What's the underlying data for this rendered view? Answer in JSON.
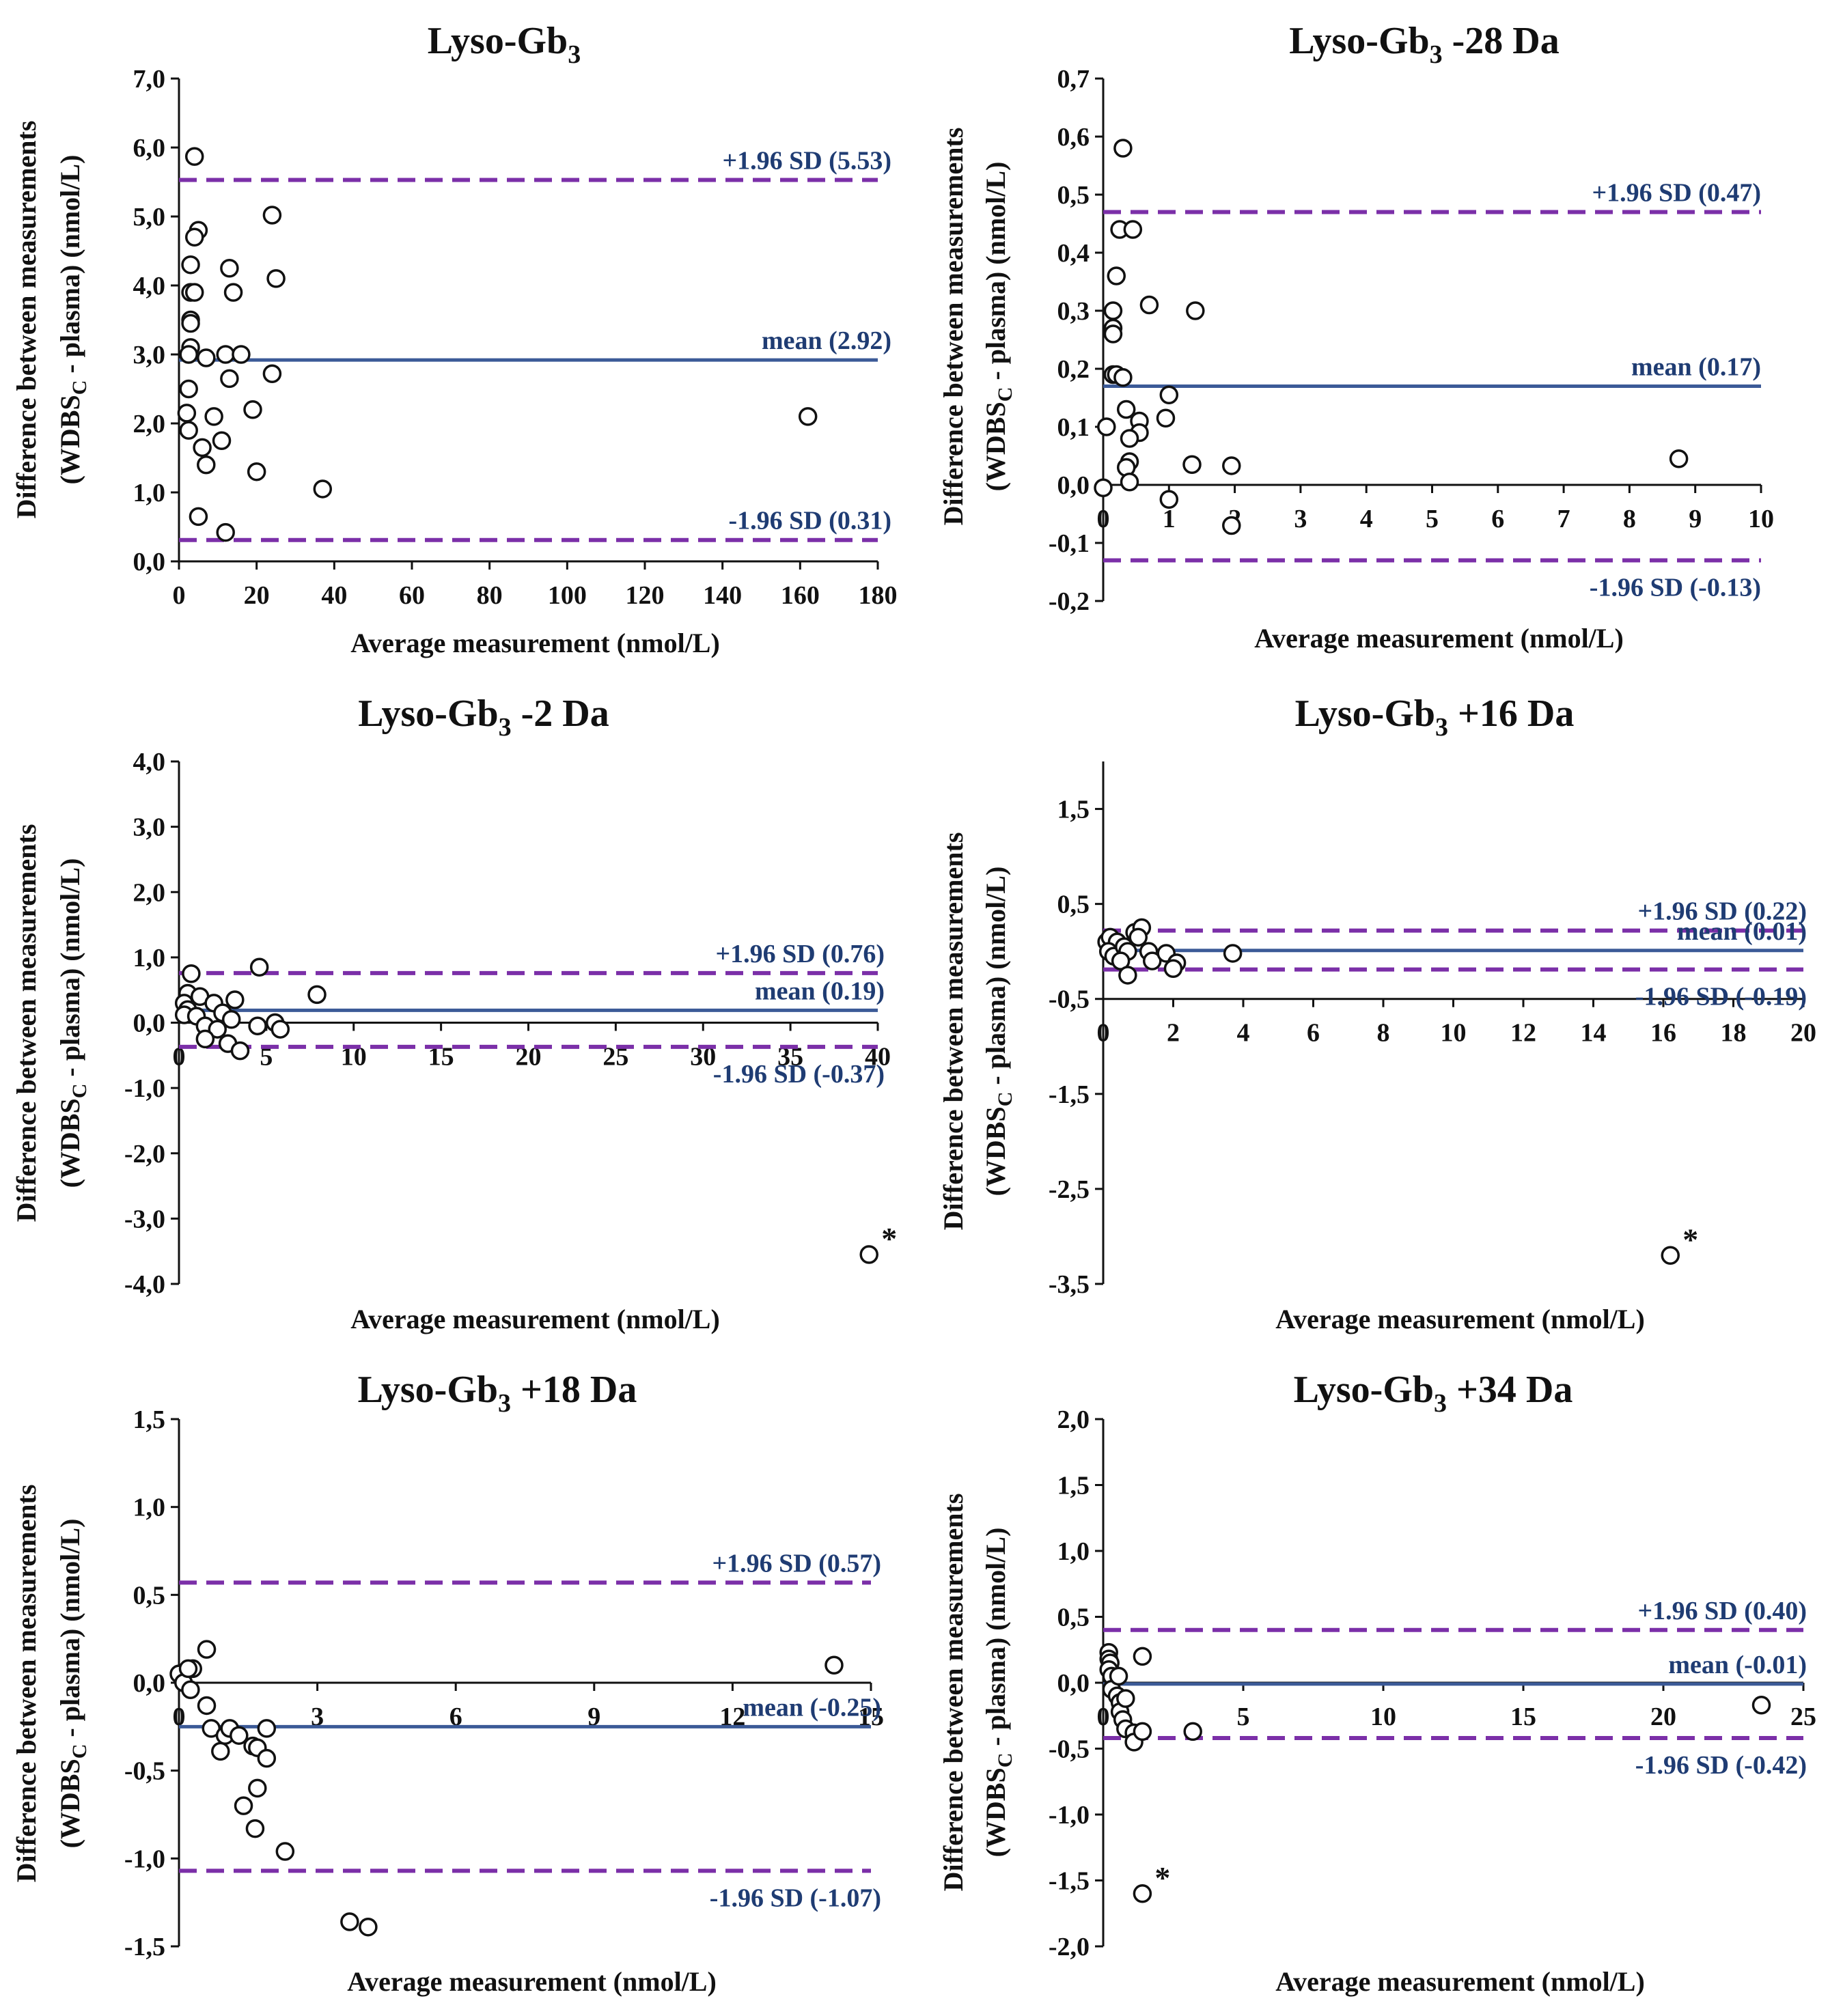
{
  "colors": {
    "mean_line": "#3b5a97",
    "sd_line": "#7b2fa8",
    "label_text": "#1f3c73",
    "axis": "#111111",
    "point_stroke": "#111111"
  },
  "chart_data": [
    {
      "type": "scatter",
      "title_main": "Lyso-Gb",
      "title_sub": "3",
      "title_rest": "",
      "xlabel": "Average measurement (nmol/L)",
      "ylabel_line1": "Difference between measurements",
      "ylabel_line2_a": "(WDBS",
      "ylabel_line2_sub": "C",
      "ylabel_line2_b": " - plasma) (nmol/L)",
      "xlim": [
        0,
        180
      ],
      "ylim": [
        0,
        7
      ],
      "xticks": [
        0,
        20,
        40,
        60,
        80,
        100,
        120,
        140,
        160,
        180
      ],
      "yticks": [
        0,
        1,
        2,
        3,
        4,
        5,
        6,
        7
      ],
      "xtick_labels": [
        "0",
        "20",
        "40",
        "60",
        "80",
        "100",
        "120",
        "140",
        "160",
        "180"
      ],
      "ytick_labels": [
        "0,0",
        "1,0",
        "2,0",
        "3,0",
        "4,0",
        "5,0",
        "6,0",
        "7,0"
      ],
      "xaxis_at": 0,
      "mean": 2.92,
      "upper": 5.53,
      "lower": 0.31,
      "mean_label": "mean (2.92)",
      "upper_label": "+1.96 SD (5.53)",
      "lower_label": "-1.96 SD (0.31)",
      "points": [
        {
          "x": 4,
          "y": 5.87
        },
        {
          "x": 5,
          "y": 4.8
        },
        {
          "x": 4,
          "y": 4.7
        },
        {
          "x": 3,
          "y": 4.3
        },
        {
          "x": 3,
          "y": 3.9
        },
        {
          "x": 4,
          "y": 3.9
        },
        {
          "x": 3,
          "y": 3.5
        },
        {
          "x": 3,
          "y": 3.45
        },
        {
          "x": 3,
          "y": 3.1
        },
        {
          "x": 2.5,
          "y": 3.0
        },
        {
          "x": 7,
          "y": 2.95
        },
        {
          "x": 2.5,
          "y": 2.5
        },
        {
          "x": 2,
          "y": 2.15
        },
        {
          "x": 2.5,
          "y": 1.9
        },
        {
          "x": 6,
          "y": 1.65
        },
        {
          "x": 7,
          "y": 1.4
        },
        {
          "x": 9,
          "y": 2.1
        },
        {
          "x": 11,
          "y": 1.75
        },
        {
          "x": 12,
          "y": 3.0
        },
        {
          "x": 13,
          "y": 4.25
        },
        {
          "x": 14,
          "y": 3.9
        },
        {
          "x": 13,
          "y": 2.65
        },
        {
          "x": 16,
          "y": 3.0
        },
        {
          "x": 19,
          "y": 2.2
        },
        {
          "x": 20,
          "y": 1.3
        },
        {
          "x": 24,
          "y": 5.02
        },
        {
          "x": 25,
          "y": 4.1
        },
        {
          "x": 24,
          "y": 2.72
        },
        {
          "x": 5,
          "y": 0.65
        },
        {
          "x": 12,
          "y": 0.42
        },
        {
          "x": 37,
          "y": 1.05
        },
        {
          "x": 162,
          "y": 2.1
        }
      ],
      "asterisk_points": []
    },
    {
      "type": "scatter",
      "title_main": "Lyso-Gb",
      "title_sub": "3",
      "title_rest": "-28 Da",
      "xlabel": "Average measurement (nmol/L)",
      "ylabel_line1": "Difference between measurements",
      "ylabel_line2_a": "(WDBS",
      "ylabel_line2_sub": "C",
      "ylabel_line2_b": " - plasma) (nmol/L)",
      "xlim": [
        0,
        10
      ],
      "ylim": [
        -0.2,
        0.7
      ],
      "xticks": [
        0,
        1,
        2,
        3,
        4,
        5,
        6,
        7,
        8,
        9,
        10
      ],
      "yticks": [
        -0.2,
        -0.1,
        0,
        0.1,
        0.2,
        0.3,
        0.4,
        0.5,
        0.6,
        0.7
      ],
      "xtick_labels": [
        "0",
        "1",
        "2",
        "3",
        "4",
        "5",
        "6",
        "7",
        "8",
        "9",
        "10"
      ],
      "ytick_labels": [
        "-0,2",
        "-0,1",
        "0,0",
        "0,1",
        "0,2",
        "0,3",
        "0,4",
        "0,5",
        "0,6",
        "0,7"
      ],
      "xaxis_at": 0,
      "mean": 0.17,
      "upper": 0.47,
      "lower": -0.13,
      "mean_label": "mean (0.17)",
      "upper_label": "+1.96 SD (0.47)",
      "lower_label": "-1.96 SD (-0.13)",
      "points": [
        {
          "x": 0.3,
          "y": 0.58
        },
        {
          "x": 0.25,
          "y": 0.44
        },
        {
          "x": 0.45,
          "y": 0.44
        },
        {
          "x": 0.2,
          "y": 0.36
        },
        {
          "x": 0.15,
          "y": 0.3
        },
        {
          "x": 0.15,
          "y": 0.27
        },
        {
          "x": 0.15,
          "y": 0.26
        },
        {
          "x": 0.15,
          "y": 0.19
        },
        {
          "x": 0.2,
          "y": 0.19
        },
        {
          "x": 0.3,
          "y": 0.185
        },
        {
          "x": 0.05,
          "y": 0.1
        },
        {
          "x": 0.35,
          "y": 0.13
        },
        {
          "x": 0.55,
          "y": 0.11
        },
        {
          "x": 0.55,
          "y": 0.09
        },
        {
          "x": 0.4,
          "y": 0.08
        },
        {
          "x": 0.4,
          "y": 0.04
        },
        {
          "x": 0.35,
          "y": 0.03
        },
        {
          "x": 0.4,
          "y": 0.005
        },
        {
          "x": 0.0,
          "y": -0.005
        },
        {
          "x": 0.7,
          "y": 0.31
        },
        {
          "x": 1.4,
          "y": 0.3
        },
        {
          "x": 1.0,
          "y": 0.155
        },
        {
          "x": 0.95,
          "y": 0.115
        },
        {
          "x": 1.0,
          "y": -0.025
        },
        {
          "x": 1.35,
          "y": 0.035
        },
        {
          "x": 1.95,
          "y": 0.033
        },
        {
          "x": 1.95,
          "y": -0.07
        },
        {
          "x": 8.75,
          "y": 0.045
        }
      ],
      "asterisk_points": []
    },
    {
      "type": "scatter",
      "title_main": "Lyso-Gb",
      "title_sub": "3",
      "title_rest": "-2 Da",
      "xlabel": "Average measurement (nmol/L)",
      "ylabel_line1": "Difference between measurements",
      "ylabel_line2_a": "(WDBS",
      "ylabel_line2_sub": "C",
      "ylabel_line2_b": " - plasma) (nmol/L)",
      "xlim": [
        0,
        40
      ],
      "ylim": [
        -4,
        4
      ],
      "xticks": [
        0,
        5,
        10,
        15,
        20,
        25,
        30,
        35,
        40
      ],
      "yticks": [
        -4,
        -3,
        -2,
        -1,
        0,
        1,
        2,
        3,
        4
      ],
      "xtick_labels": [
        "0",
        "5",
        "10",
        "15",
        "20",
        "25",
        "30",
        "35",
        "40"
      ],
      "ytick_labels": [
        "-4,0",
        "-3,0",
        "-2,0",
        "-1,0",
        "0,0",
        "1,0",
        "2,0",
        "3,0",
        "4,0"
      ],
      "xaxis_at": 0,
      "mean": 0.19,
      "upper": 0.76,
      "lower": -0.37,
      "mean_label": "mean (0.19)",
      "upper_label": "+1.96 SD (0.76)",
      "lower_label": "-1.96 SD (-0.37)",
      "points": [
        {
          "x": 0.7,
          "y": 0.75
        },
        {
          "x": 0.5,
          "y": 0.45
        },
        {
          "x": 1.2,
          "y": 0.4
        },
        {
          "x": 0.3,
          "y": 0.3
        },
        {
          "x": 0.5,
          "y": 0.2
        },
        {
          "x": 0.3,
          "y": 0.12
        },
        {
          "x": 1.0,
          "y": 0.1
        },
        {
          "x": 2.0,
          "y": 0.3
        },
        {
          "x": 3.2,
          "y": 0.35
        },
        {
          "x": 2.5,
          "y": 0.15
        },
        {
          "x": 3.0,
          "y": 0.05
        },
        {
          "x": 1.5,
          "y": -0.05
        },
        {
          "x": 2.2,
          "y": -0.1
        },
        {
          "x": 1.5,
          "y": -0.25
        },
        {
          "x": 2.8,
          "y": -0.32
        },
        {
          "x": 3.5,
          "y": -0.43
        },
        {
          "x": 4.5,
          "y": -0.05
        },
        {
          "x": 5.5,
          "y": 0.0
        },
        {
          "x": 5.8,
          "y": -0.1
        },
        {
          "x": 4.6,
          "y": 0.85
        },
        {
          "x": 7.9,
          "y": 0.43
        },
        {
          "x": 39.5,
          "y": -3.55
        }
      ],
      "asterisk_points": [
        {
          "x": 39.5,
          "y": -3.55,
          "label": "*"
        }
      ]
    },
    {
      "type": "scatter",
      "title_main": "Lyso-Gb",
      "title_sub": "3",
      "title_rest": "+16 Da",
      "xlabel": "Average measurement (nmol/L)",
      "ylabel_line1": "Difference between measurements",
      "ylabel_line2_a": "(WDBS",
      "ylabel_line2_sub": "C",
      "ylabel_line2_b": " - plasma) (nmol/L)",
      "xlim": [
        0,
        20
      ],
      "ylim": [
        -3.5,
        2.0
      ],
      "xticks": [
        0,
        2,
        4,
        6,
        8,
        10,
        12,
        14,
        16,
        18,
        20
      ],
      "yticks": [
        -3.5,
        -2.5,
        -1.5,
        -0.5,
        0.5,
        1.5
      ],
      "xtick_labels": [
        "0",
        "2",
        "4",
        "6",
        "8",
        "10",
        "12",
        "14",
        "16",
        "18",
        "20"
      ],
      "ytick_labels": [
        "-3,5",
        "-2,5",
        "-1,5",
        "-0,5",
        "0,5",
        "1,5"
      ],
      "xaxis_at": -0.5,
      "mean": 0.01,
      "upper": 0.22,
      "lower": -0.19,
      "mean_label": "mean (0.01)",
      "upper_label": "+1.96 SD (0.22)",
      "lower_label": "-1.96 SD (-0.19)",
      "points": [
        {
          "x": 0.1,
          "y": 0.1
        },
        {
          "x": 0.2,
          "y": 0.15
        },
        {
          "x": 0.4,
          "y": 0.1
        },
        {
          "x": 0.15,
          "y": 0.0
        },
        {
          "x": 0.3,
          "y": -0.05
        },
        {
          "x": 0.6,
          "y": 0.05
        },
        {
          "x": 0.7,
          "y": 0.0
        },
        {
          "x": 0.5,
          "y": -0.1
        },
        {
          "x": 0.7,
          "y": -0.25
        },
        {
          "x": 0.9,
          "y": 0.2
        },
        {
          "x": 1.1,
          "y": 0.25
        },
        {
          "x": 1.0,
          "y": 0.15
        },
        {
          "x": 1.3,
          "y": 0.0
        },
        {
          "x": 1.4,
          "y": -0.1
        },
        {
          "x": 1.8,
          "y": -0.02
        },
        {
          "x": 2.1,
          "y": -0.12
        },
        {
          "x": 2.0,
          "y": -0.18
        },
        {
          "x": 3.7,
          "y": -0.02
        },
        {
          "x": 16.2,
          "y": -3.2
        }
      ],
      "asterisk_points": [
        {
          "x": 16.2,
          "y": -3.2,
          "label": "*"
        }
      ]
    },
    {
      "type": "scatter",
      "title_main": "Lyso-Gb",
      "title_sub": "3",
      "title_rest": "+18 Da",
      "xlabel": "Average measurement (nmol/L)",
      "ylabel_line1": "Difference between measurements",
      "ylabel_line2_a": "(WDBS",
      "ylabel_line2_sub": "C",
      "ylabel_line2_b": " - plasma) (nmol/L)",
      "xlim": [
        0,
        15
      ],
      "ylim": [
        -1.5,
        1.5
      ],
      "xticks": [
        0,
        3,
        6,
        9,
        12,
        15
      ],
      "yticks": [
        -1.5,
        -1.0,
        -0.5,
        0,
        0.5,
        1.0,
        1.5
      ],
      "xtick_labels": [
        "0",
        "3",
        "6",
        "9",
        "12",
        "15"
      ],
      "ytick_labels": [
        "-1,5",
        "-1,0",
        "-0,5",
        "0,0",
        "0,5",
        "1,0",
        "1,5"
      ],
      "xaxis_at": 0,
      "mean": -0.25,
      "upper": 0.57,
      "lower": -1.07,
      "mean_label": "mean (-0.25)",
      "upper_label": "+1.96 SD (0.57)",
      "lower_label": "-1.96 SD (-1.07)",
      "points": [
        {
          "x": 0.0,
          "y": 0.05
        },
        {
          "x": 0.1,
          "y": 0.0
        },
        {
          "x": 0.3,
          "y": 0.08
        },
        {
          "x": 0.2,
          "y": 0.08
        },
        {
          "x": 0.25,
          "y": -0.04
        },
        {
          "x": 0.6,
          "y": 0.19
        },
        {
          "x": 0.6,
          "y": -0.13
        },
        {
          "x": 0.7,
          "y": -0.26
        },
        {
          "x": 0.9,
          "y": -0.39
        },
        {
          "x": 1.0,
          "y": -0.3
        },
        {
          "x": 1.1,
          "y": -0.26
        },
        {
          "x": 1.3,
          "y": -0.3
        },
        {
          "x": 1.6,
          "y": -0.36
        },
        {
          "x": 1.7,
          "y": -0.37
        },
        {
          "x": 1.9,
          "y": -0.26
        },
        {
          "x": 1.9,
          "y": -0.43
        },
        {
          "x": 1.4,
          "y": -0.7
        },
        {
          "x": 1.7,
          "y": -0.6
        },
        {
          "x": 1.65,
          "y": -0.83
        },
        {
          "x": 2.3,
          "y": -0.96
        },
        {
          "x": 3.7,
          "y": -1.36
        },
        {
          "x": 4.1,
          "y": -1.39
        },
        {
          "x": 14.2,
          "y": 0.1
        }
      ],
      "asterisk_points": []
    },
    {
      "type": "scatter",
      "title_main": "Lyso-Gb",
      "title_sub": "3",
      "title_rest": "+34 Da",
      "xlabel": "Average measurement (nmol/L)",
      "ylabel_line1": "Difference between measurements",
      "ylabel_line2_a": "(WDBS",
      "ylabel_line2_sub": "C",
      "ylabel_line2_b": " - plasma) (nmol/L)",
      "xlim": [
        0,
        25
      ],
      "ylim": [
        -2.0,
        2.0
      ],
      "xticks": [
        0,
        5,
        10,
        15,
        20,
        25
      ],
      "yticks": [
        -2.0,
        -1.5,
        -1.0,
        -0.5,
        0,
        0.5,
        1.0,
        1.5,
        2.0
      ],
      "xtick_labels": [
        "0",
        "5",
        "10",
        "15",
        "20",
        "25"
      ],
      "ytick_labels": [
        "-2,0",
        "-1,5",
        "-1,0",
        "-0,5",
        "0,0",
        "0,5",
        "1,0",
        "1,5",
        "2,0"
      ],
      "xaxis_at": 0,
      "mean": -0.01,
      "upper": 0.4,
      "lower": -0.42,
      "mean_label": "mean (-0.01)",
      "upper_label": "+1.96 SD (0.40)",
      "lower_label": "-1.96 SD (-0.42)",
      "points": [
        {
          "x": 0.2,
          "y": 0.23
        },
        {
          "x": 0.2,
          "y": 0.18
        },
        {
          "x": 0.25,
          "y": 0.15
        },
        {
          "x": 0.2,
          "y": 0.1
        },
        {
          "x": 0.3,
          "y": 0.05
        },
        {
          "x": 0.3,
          "y": -0.05
        },
        {
          "x": 0.5,
          "y": -0.1
        },
        {
          "x": 0.55,
          "y": 0.05
        },
        {
          "x": 0.6,
          "y": -0.15
        },
        {
          "x": 0.6,
          "y": -0.22
        },
        {
          "x": 0.8,
          "y": -0.12
        },
        {
          "x": 0.7,
          "y": -0.28
        },
        {
          "x": 0.8,
          "y": -0.35
        },
        {
          "x": 1.1,
          "y": -0.38
        },
        {
          "x": 1.1,
          "y": -0.45
        },
        {
          "x": 1.4,
          "y": 0.2
        },
        {
          "x": 1.4,
          "y": -0.37
        },
        {
          "x": 3.2,
          "y": -0.37
        },
        {
          "x": 23.5,
          "y": -0.17
        },
        {
          "x": 1.4,
          "y": -1.6
        }
      ],
      "asterisk_points": [
        {
          "x": 1.4,
          "y": -1.6,
          "label": "*"
        }
      ]
    }
  ]
}
